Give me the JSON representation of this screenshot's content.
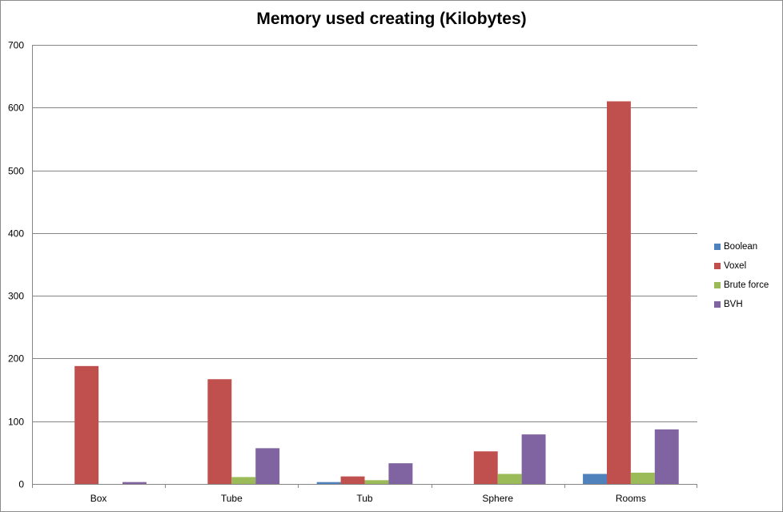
{
  "chart_data": {
    "type": "bar",
    "title": "Memory used creating (Kilobytes)",
    "xlabel": "",
    "ylabel": "",
    "ylim": [
      0,
      700
    ],
    "yticks": [
      0,
      100,
      200,
      300,
      400,
      500,
      600,
      700
    ],
    "grid": true,
    "legend_position": "right",
    "categories": [
      "Box",
      "Tube",
      "Tub",
      "Sphere",
      "Rooms"
    ],
    "series": [
      {
        "name": "Boolean",
        "color": "#4f81bd",
        "values": [
          0,
          0,
          3,
          0,
          16
        ]
      },
      {
        "name": "Voxel",
        "color": "#c0504d",
        "values": [
          188,
          167,
          12,
          52,
          610
        ]
      },
      {
        "name": "Brute force",
        "color": "#9bbb59",
        "values": [
          0,
          11,
          6,
          16,
          18
        ]
      },
      {
        "name": "BVH",
        "color": "#8064a2",
        "values": [
          3,
          57,
          33,
          79,
          87
        ]
      }
    ]
  }
}
